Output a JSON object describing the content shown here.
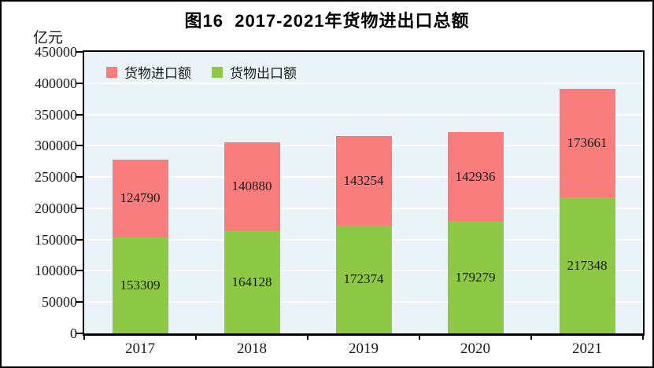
{
  "header": {
    "title": "图16  2017-2021年货物进出口总额"
  },
  "axis": {
    "unit_label": "亿元"
  },
  "legend": {
    "items": [
      {
        "label": "货物进口额",
        "color": "#fa7d7d"
      },
      {
        "label": "货物出口额",
        "color": "#8dc944"
      }
    ]
  },
  "colors": {
    "import_bar": "#fa7d7d",
    "export_bar": "#8dc944",
    "plot_background": "#e9f3f8",
    "gridline": "#ffffff",
    "axis_line": "#000000",
    "text": "#1a1a1a"
  },
  "chart_data": {
    "type": "bar",
    "stacked": true,
    "title": "图16  2017-2021年货物进出口总额",
    "ylabel": "亿元",
    "categories": [
      "2017",
      "2018",
      "2019",
      "2020",
      "2021"
    ],
    "series": [
      {
        "name": "货物出口额",
        "color": "#8dc944",
        "values": [
          153309,
          164128,
          172374,
          179279,
          217348
        ]
      },
      {
        "name": "货物进口额",
        "color": "#fa7d7d",
        "values": [
          124790,
          140880,
          143254,
          142936,
          173661
        ]
      }
    ],
    "ylim": [
      0,
      450000
    ],
    "ytick_step": 50000,
    "grid": true,
    "legend_position": "top-left"
  }
}
